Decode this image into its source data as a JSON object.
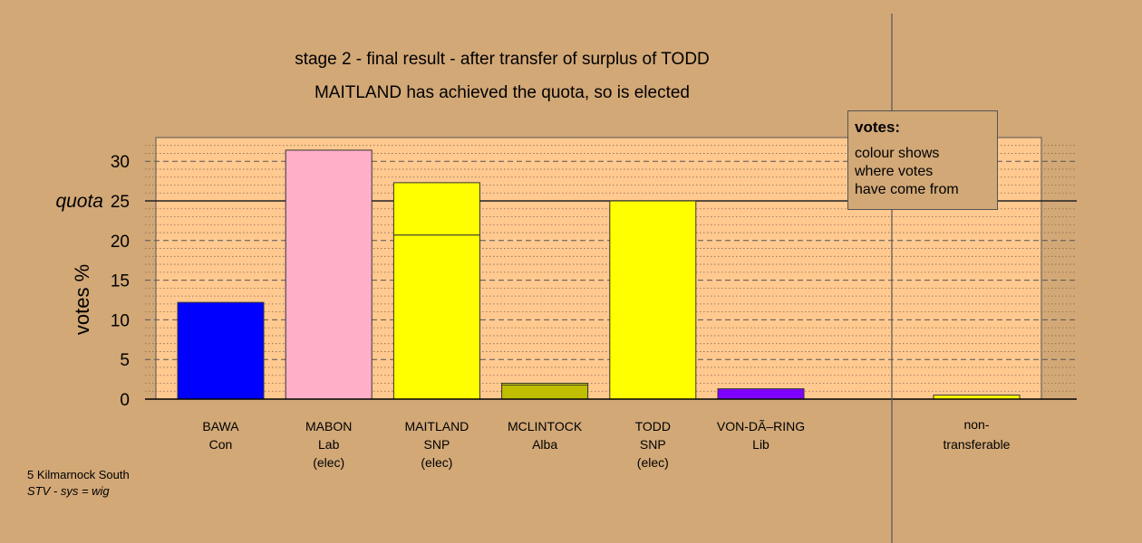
{
  "title": "stage 2 - final result - after transfer of surplus of TODD",
  "subtitle": "MAITLAND has achieved the quota, so is elected",
  "chart_data": {
    "type": "bar",
    "ylabel": "votes %",
    "ylim": [
      0,
      33
    ],
    "yticks": [
      0,
      5,
      10,
      15,
      20,
      25,
      30
    ],
    "quota": 25,
    "quota_label": "quota",
    "grid": true,
    "candidates": [
      {
        "name": "BAWA",
        "party": "Con",
        "status": "",
        "segments": [
          {
            "value": 12.2,
            "color": "#0000FF"
          }
        ]
      },
      {
        "name": "MABON",
        "party": "Lab",
        "status": "(elec)",
        "segments": [
          {
            "value": 31.4,
            "color": "#FFB0C8"
          }
        ]
      },
      {
        "name": "MAITLAND",
        "party": "SNP",
        "status": "(elec)",
        "segments": [
          {
            "value": 20.7,
            "color": "#FFFF00"
          },
          {
            "value": 6.6,
            "color": "#FFFF00"
          }
        ]
      },
      {
        "name": "MCLINTOCK",
        "party": "Alba",
        "status": "",
        "segments": [
          {
            "value": 1.8,
            "color": "#BFBF00"
          },
          {
            "value": 0.2,
            "color": "#FFFF00"
          }
        ]
      },
      {
        "name": "TODD",
        "party": "SNP",
        "status": "(elec)",
        "segments": [
          {
            "value": 25.0,
            "color": "#FFFF00"
          }
        ]
      },
      {
        "name": "VON-DÃ–RING",
        "party": "Lib",
        "status": "",
        "segments": [
          {
            "value": 1.3,
            "color": "#8000FF"
          }
        ]
      }
    ],
    "nontransferable": {
      "label_line1": "non-",
      "label_line2": "transferable",
      "value": 0.5,
      "color": "#FFFF00"
    }
  },
  "legend": {
    "title": "votes:",
    "lines": [
      "colour shows",
      "where votes",
      "have come from"
    ]
  },
  "footer": {
    "constituency": "5 Kilmarnock South",
    "system": "STV - sys = wig"
  }
}
